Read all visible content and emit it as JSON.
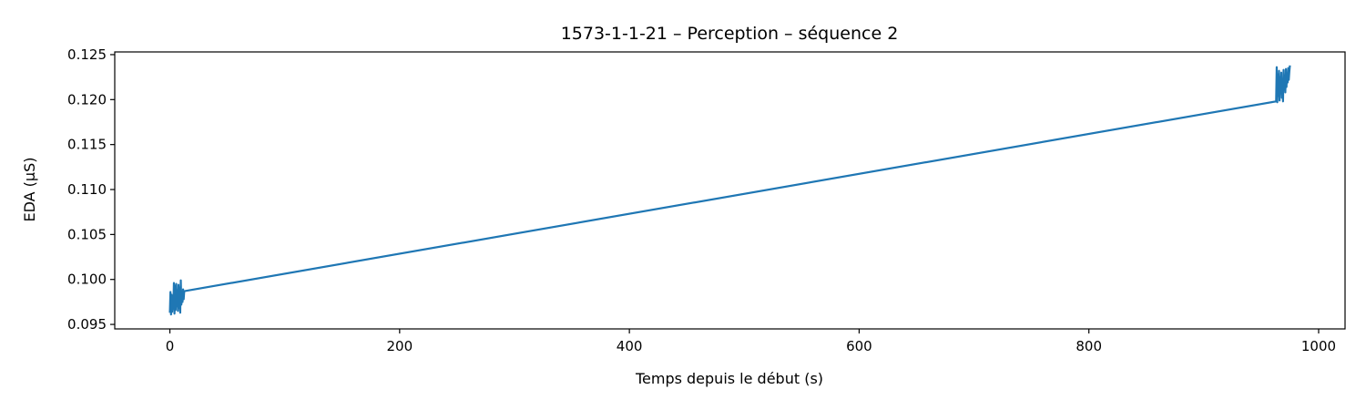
{
  "chart_data": {
    "type": "line",
    "title": "1573-1-1-21 – Perception – séquence 2",
    "xlabel": "Temps depuis le début (s)",
    "ylabel": "EDA (µS)",
    "xlim": [
      -48,
      1023
    ],
    "ylim": [
      0.0945,
      0.1253
    ],
    "x_ticks": [
      0,
      200,
      400,
      600,
      800,
      1000
    ],
    "y_ticks": [
      0.095,
      0.1,
      0.105,
      0.11,
      0.115,
      0.12,
      0.125
    ],
    "x_tick_labels": [
      "0",
      "200",
      "400",
      "600",
      "800",
      "1000"
    ],
    "y_tick_labels": [
      "0.095",
      "0.100",
      "0.105",
      "0.110",
      "0.115",
      "0.120",
      "0.125"
    ],
    "grid": false,
    "series": [
      {
        "color": "#1f77b4",
        "x": [
          0.0,
          0.5,
          1.0,
          1.5,
          2.0,
          2.5,
          3.0,
          3.5,
          4.0,
          4.5,
          5.0,
          5.5,
          6.0,
          6.5,
          7.0,
          7.5,
          8.0,
          8.5,
          9.0,
          9.5,
          10.0,
          10.5,
          11.0,
          11.5,
          12.0,
          12.5,
          963.0,
          963.5,
          964.0,
          964.5,
          965.0,
          965.5,
          966.0,
          966.5,
          967.0,
          967.5,
          968.0,
          968.5,
          969.0,
          969.5,
          970.0,
          970.5,
          971.0,
          971.5,
          972.0,
          972.5,
          973.0,
          973.5,
          974.0,
          974.5,
          975.0
        ],
        "y": [
          0.0963,
          0.0986,
          0.0961,
          0.0983,
          0.0964,
          0.0979,
          0.0967,
          0.0996,
          0.0962,
          0.0993,
          0.0966,
          0.0995,
          0.097,
          0.0988,
          0.0965,
          0.0994,
          0.0968,
          0.0991,
          0.0963,
          0.0999,
          0.0972,
          0.0985,
          0.0975,
          0.0989,
          0.0978,
          0.0987,
          0.1198,
          0.1236,
          0.1197,
          0.1228,
          0.1204,
          0.1232,
          0.1199,
          0.1225,
          0.1207,
          0.123,
          0.1202,
          0.1221,
          0.1198,
          0.1233,
          0.1211,
          0.1226,
          0.1208,
          0.1234,
          0.1214,
          0.1229,
          0.1219,
          0.1235,
          0.1222,
          0.1231,
          0.1238
        ]
      }
    ]
  }
}
